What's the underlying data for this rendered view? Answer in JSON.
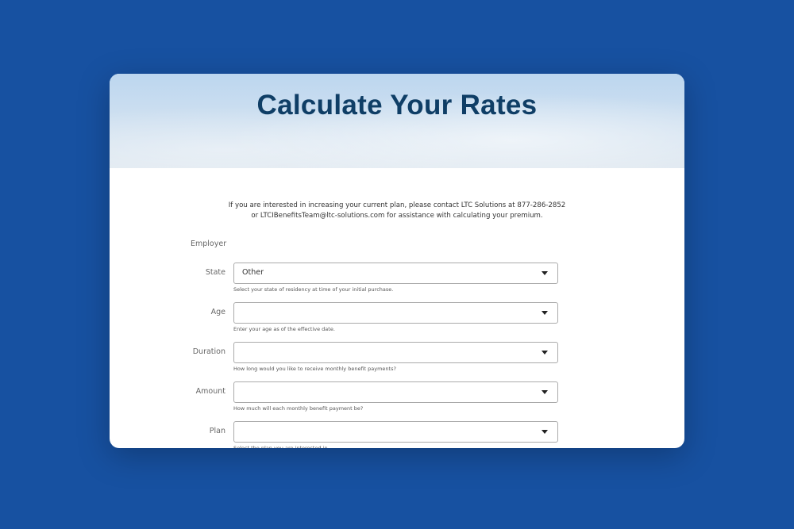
{
  "header": {
    "title": "Calculate Your Rates"
  },
  "intro": {
    "line1": "If you are interested in increasing your current plan, please contact LTC Solutions at 877-286-2852",
    "line2": "or LTCIBenefitsTeam@ltc-solutions.com for assistance with calculating your premium."
  },
  "employer_label": "Employer",
  "fields": [
    {
      "label": "State",
      "value": "Other",
      "help": "Select your state of residency at time of your initial purchase."
    },
    {
      "label": "Age",
      "value": "",
      "help": "Enter your age as of the effective date."
    },
    {
      "label": "Duration",
      "value": "",
      "help": "How long would you like to receive monthly benefit payments?"
    },
    {
      "label": "Amount",
      "value": "",
      "help": "How much will each monthly benefit payment be?"
    },
    {
      "label": "Plan",
      "value": "",
      "help": "Select the plan you are interested in."
    }
  ],
  "colors": {
    "background": "#1751a1",
    "title": "#0f3e66"
  }
}
